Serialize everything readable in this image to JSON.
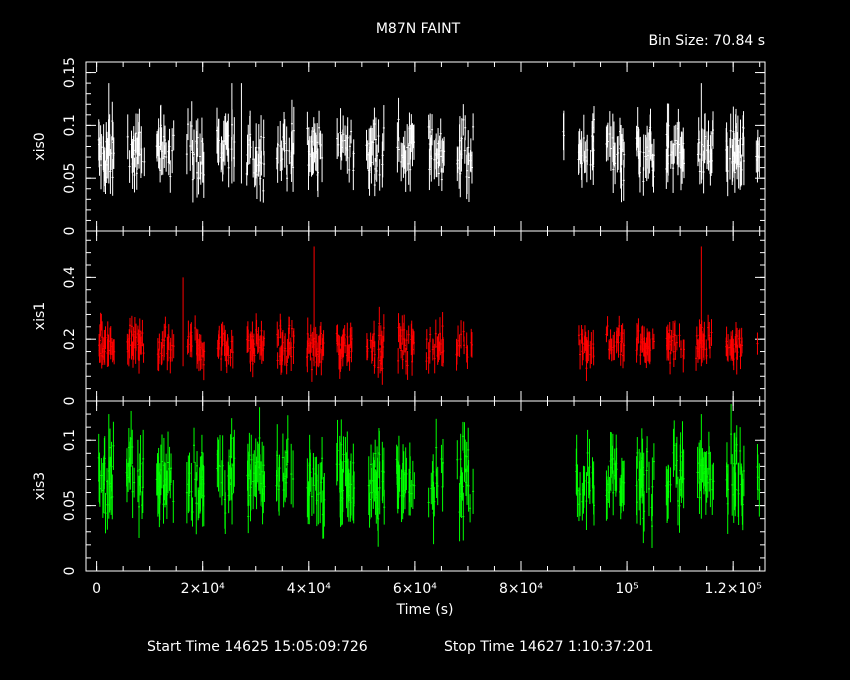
{
  "title": "M87N FAINT",
  "bin_size_label": "Bin Size: 70.84 s",
  "xlabel": "Time (s)",
  "footer": {
    "start_label": "Start Time 14625 15:05:09:726",
    "stop_label": "Stop Time 14627  1:10:37:201"
  },
  "x_ticks": [
    {
      "value": 0,
      "label": "0"
    },
    {
      "value": 20000,
      "label": "2×10⁴"
    },
    {
      "value": 40000,
      "label": "4×10⁴"
    },
    {
      "value": 60000,
      "label": "6×10⁴"
    },
    {
      "value": 80000,
      "label": "8×10⁴"
    },
    {
      "value": 100000,
      "label": "10⁵"
    },
    {
      "value": 120000,
      "label": "1.2×10⁵"
    }
  ],
  "chart_data": {
    "type": "scatter",
    "xlim": [
      -2000,
      126000
    ],
    "grid": false,
    "panels": [
      {
        "name": "xis0",
        "ylabel": "xis0",
        "color": "#ffffff",
        "ylim": [
          0,
          0.16
        ],
        "yticks": [
          0,
          0.05,
          0.1,
          0.15
        ],
        "ytick_labels": [
          "0",
          "0.05",
          "0.1",
          "0.15"
        ],
        "gap": [
          71000,
          88000
        ],
        "mean": 0.075,
        "spread": 0.02,
        "spikes": [
          {
            "x": 2300,
            "y": 0.14
          },
          {
            "x": 25500,
            "y": 0.14
          },
          {
            "x": 27300,
            "y": 0.14
          },
          {
            "x": 114000,
            "y": 0.14
          }
        ]
      },
      {
        "name": "xis1",
        "ylabel": "xis1",
        "color": "#ff0000",
        "ylim": [
          0,
          0.55
        ],
        "yticks": [
          0,
          0.2,
          0.4
        ],
        "ytick_labels": [
          "0",
          "0.2",
          "0.4"
        ],
        "gap": [
          71000,
          88000
        ],
        "mean": 0.18,
        "spread": 0.045,
        "spikes": [
          {
            "x": 16300,
            "y": 0.4
          },
          {
            "x": 41000,
            "y": 0.5
          },
          {
            "x": 114000,
            "y": 0.5
          }
        ]
      },
      {
        "name": "xis3",
        "ylabel": "xis3",
        "color": "#00ff00",
        "ylim": [
          0,
          0.13
        ],
        "yticks": [
          0,
          0.05,
          0.1
        ],
        "ytick_labels": [
          "0",
          "0.05",
          "0.1"
        ],
        "gap": [
          71000,
          88000
        ],
        "mean": 0.07,
        "spread": 0.02,
        "spikes": [
          {
            "x": 2300,
            "y": 0.12
          },
          {
            "x": 114000,
            "y": 0.12
          }
        ]
      }
    ]
  }
}
